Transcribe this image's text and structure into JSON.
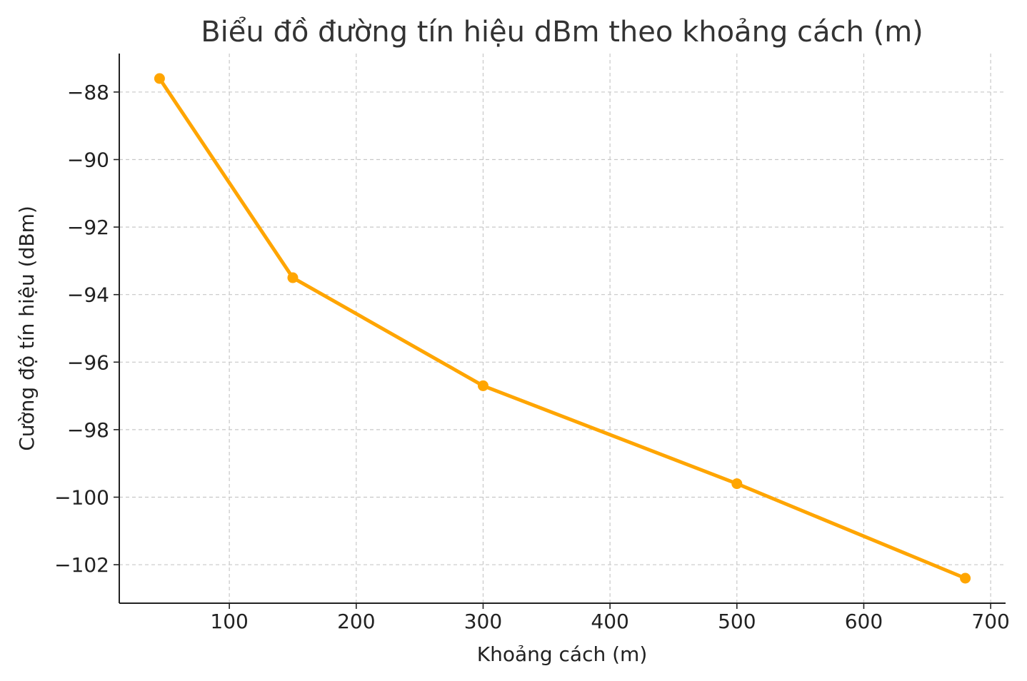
{
  "chart_data": {
    "type": "line",
    "title": "Biểu đồ đường tín hiệu dBm theo khoảng cách (m)",
    "xlabel": "Khoảng cách (m)",
    "ylabel": "Cường độ tín hiệu (dBm)",
    "x": [
      45,
      150,
      300,
      500,
      680
    ],
    "series": [
      {
        "values": [
          -87.6,
          -93.5,
          -96.7,
          -99.6,
          -102.4
        ],
        "color": "#FFA500"
      }
    ],
    "xlim": [
      13.25,
      711.75
    ],
    "ylim": [
      -103.14,
      -86.86
    ],
    "xticks": [
      100,
      200,
      300,
      400,
      500,
      600,
      700
    ],
    "yticks": [
      -88,
      -90,
      -92,
      -94,
      -96,
      -98,
      -100,
      -102
    ],
    "xtick_labels": [
      "100",
      "200",
      "300",
      "400",
      "500",
      "600",
      "700"
    ],
    "ytick_labels": [
      "−88",
      "−90",
      "−92",
      "−94",
      "−96",
      "−98",
      "−100",
      "−102"
    ],
    "grid": true,
    "marker": "circle"
  }
}
